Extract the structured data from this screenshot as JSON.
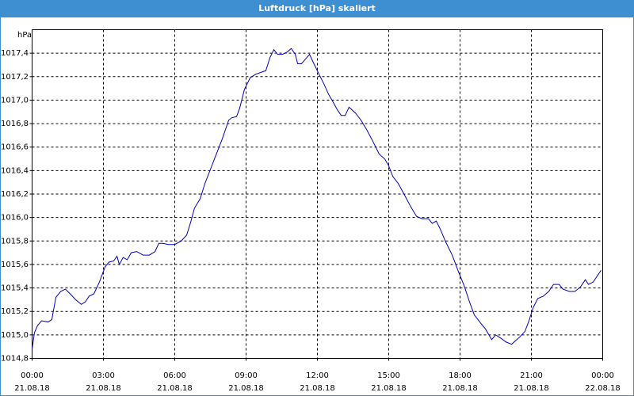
{
  "chart_data": {
    "type": "line",
    "title": "Luftdruck [hPa] skaliert",
    "y_label": "hPa",
    "xlim": [
      0,
      24
    ],
    "ylim": [
      1014.8,
      1017.6
    ],
    "grid": true,
    "xticks": [
      {
        "value": 0,
        "label": "00:00"
      },
      {
        "value": 3,
        "label": "03:00"
      },
      {
        "value": 6,
        "label": "06:00"
      },
      {
        "value": 9,
        "label": "09:00"
      },
      {
        "value": 12,
        "label": "12:00"
      },
      {
        "value": 15,
        "label": "15:00"
      },
      {
        "value": 18,
        "label": "18:00"
      },
      {
        "value": 21,
        "label": "21:00"
      },
      {
        "value": 24,
        "label": "00:00"
      }
    ],
    "xtick_dates": [
      "21.08.18",
      "21.08.18",
      "21.08.18",
      "21.08.18",
      "21.08.18",
      "21.08.18",
      "21.08.18",
      "21.08.18",
      "22.08.18"
    ],
    "yticks": [
      {
        "value": 1014.8,
        "label": "1014,8"
      },
      {
        "value": 1015.0,
        "label": "1015,0"
      },
      {
        "value": 1015.2,
        "label": "1015,2"
      },
      {
        "value": 1015.4,
        "label": "1015,4"
      },
      {
        "value": 1015.6,
        "label": "1015,6"
      },
      {
        "value": 1015.8,
        "label": "1015,8"
      },
      {
        "value": 1016.0,
        "label": "1016,0"
      },
      {
        "value": 1016.2,
        "label": "1016,2"
      },
      {
        "value": 1016.4,
        "label": "1016,4"
      },
      {
        "value": 1016.6,
        "label": "1016,6"
      },
      {
        "value": 1016.8,
        "label": "1016,8"
      },
      {
        "value": 1017.0,
        "label": "1017,0"
      },
      {
        "value": 1017.2,
        "label": "1017,2"
      },
      {
        "value": 1017.4,
        "label": "1017,4"
      }
    ],
    "x": [
      0,
      0.1,
      0.23,
      0.4,
      0.67,
      0.83,
      1.0,
      1.2,
      1.4,
      1.6,
      1.83,
      2.07,
      2.23,
      2.4,
      2.6,
      2.83,
      3.07,
      3.23,
      3.43,
      3.57,
      3.67,
      3.83,
      4.0,
      4.17,
      4.4,
      4.67,
      4.93,
      5.17,
      5.33,
      5.5,
      5.73,
      6.0,
      6.27,
      6.5,
      6.67,
      6.83,
      7.07,
      7.27,
      7.5,
      7.73,
      8.0,
      8.27,
      8.4,
      8.6,
      8.73,
      8.93,
      9.17,
      9.4,
      9.67,
      9.83,
      10.0,
      10.17,
      10.33,
      10.53,
      10.73,
      10.9,
      11.07,
      11.17,
      11.33,
      11.5,
      11.67,
      11.83,
      12.07,
      12.27,
      12.47,
      12.67,
      12.83,
      13.0,
      13.17,
      13.33,
      13.6,
      13.83,
      14.07,
      14.33,
      14.6,
      14.83,
      15.0,
      15.17,
      15.4,
      15.67,
      15.93,
      16.17,
      16.4,
      16.67,
      16.83,
      17.0,
      17.17,
      17.4,
      17.67,
      17.93,
      18.17,
      18.4,
      18.6,
      18.83,
      19.07,
      19.33,
      19.5,
      19.73,
      19.93,
      20.17,
      20.33,
      20.5,
      20.73,
      20.9,
      21.07,
      21.27,
      21.5,
      21.73,
      21.93,
      22.17,
      22.33,
      22.6,
      22.83,
      23.07,
      23.27,
      23.4,
      23.6,
      23.73,
      23.93
    ],
    "series": [
      {
        "color": "#0000c0",
        "values": [
          1014.88,
          1015.02,
          1015.08,
          1015.12,
          1015.11,
          1015.13,
          1015.32,
          1015.37,
          1015.39,
          1015.35,
          1015.3,
          1015.26,
          1015.28,
          1015.33,
          1015.35,
          1015.45,
          1015.58,
          1015.62,
          1015.63,
          1015.67,
          1015.6,
          1015.66,
          1015.64,
          1015.7,
          1015.71,
          1015.68,
          1015.68,
          1015.71,
          1015.78,
          1015.78,
          1015.77,
          1015.77,
          1015.8,
          1015.85,
          1015.96,
          1016.08,
          1016.16,
          1016.29,
          1016.41,
          1016.53,
          1016.67,
          1016.83,
          1016.85,
          1016.86,
          1016.93,
          1017.09,
          1017.19,
          1017.22,
          1017.24,
          1017.25,
          1017.36,
          1017.43,
          1017.39,
          1017.39,
          1017.41,
          1017.44,
          1017.39,
          1017.31,
          1017.31,
          1017.35,
          1017.39,
          1017.32,
          1017.22,
          1017.14,
          1017.05,
          1016.98,
          1016.92,
          1016.87,
          1016.87,
          1016.94,
          1016.89,
          1016.83,
          1016.75,
          1016.65,
          1016.54,
          1016.5,
          1016.44,
          1016.35,
          1016.29,
          1016.19,
          1016.09,
          1016.01,
          1015.99,
          1015.99,
          1015.95,
          1015.97,
          1015.9,
          1015.79,
          1015.68,
          1015.54,
          1015.42,
          1015.28,
          1015.17,
          1015.11,
          1015.05,
          1014.96,
          1015.0,
          1014.97,
          1014.94,
          1014.92,
          1014.95,
          1014.98,
          1015.03,
          1015.12,
          1015.23,
          1015.31,
          1015.33,
          1015.37,
          1015.43,
          1015.43,
          1015.39,
          1015.37,
          1015.37,
          1015.41,
          1015.47,
          1015.43,
          1015.45,
          1015.49,
          1015.55
        ]
      }
    ]
  }
}
